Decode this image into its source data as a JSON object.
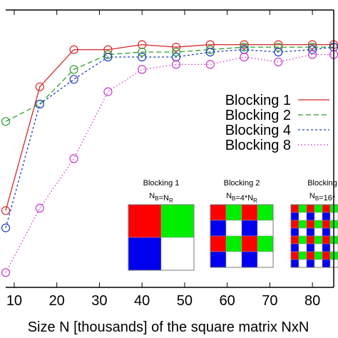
{
  "chart_data": {
    "type": "line",
    "xlabel": "Size N [thousands] of the square matrix NxN",
    "ylabel": "",
    "title": "",
    "xlim": [
      8,
      85
    ],
    "ylim": [
      0,
      1.12
    ],
    "x_ticks": [
      "10",
      "20",
      "30",
      "40",
      "50",
      "60",
      "70",
      "80"
    ],
    "x_tick_values": [
      10,
      20,
      30,
      40,
      50,
      60,
      70,
      80
    ],
    "grid": false,
    "legend_position": "right",
    "series": [
      {
        "name": "Blocking 1",
        "color": "#d62728",
        "dash": "solid",
        "x": [
          8,
          16,
          24,
          32,
          40,
          48,
          56,
          64,
          72,
          80,
          85
        ],
        "y": [
          0.31,
          0.81,
          0.96,
          0.96,
          0.98,
          0.97,
          0.98,
          0.98,
          0.98,
          0.98,
          0.98
        ]
      },
      {
        "name": "Blocking 2",
        "color": "#2ca02c",
        "dash": "long",
        "x": [
          8,
          16,
          24,
          32,
          40,
          48,
          56,
          64,
          72,
          80,
          85
        ],
        "y": [
          0.67,
          0.74,
          0.88,
          0.94,
          0.95,
          0.95,
          0.96,
          0.97,
          0.97,
          0.97,
          0.97
        ]
      },
      {
        "name": "Blocking 4",
        "color": "#1f3fbf",
        "dash": "short",
        "x": [
          8,
          16,
          24,
          32,
          40,
          48,
          56,
          64,
          72,
          80,
          85
        ],
        "y": [
          0.24,
          0.74,
          0.84,
          0.93,
          0.93,
          0.93,
          0.95,
          0.96,
          0.95,
          0.96,
          0.97
        ]
      },
      {
        "name": "Blocking 8",
        "color": "#cc33cc",
        "dash": "dot",
        "x": [
          8,
          16,
          24,
          32,
          40,
          48,
          56,
          64,
          72,
          80,
          85
        ],
        "y": [
          0.06,
          0.32,
          0.52,
          0.79,
          0.88,
          0.9,
          0.9,
          0.93,
          0.91,
          0.94,
          0.94
        ]
      }
    ],
    "insets": [
      {
        "title": "Blocking 1",
        "formula": "N_B=N_R",
        "grid": 2,
        "pattern": [
          [
            "red",
            "green"
          ],
          [
            "blue",
            "white"
          ]
        ]
      },
      {
        "title": "Blocking 2",
        "formula": "N_B=4*N_R",
        "grid": 4,
        "pattern": [
          [
            "red",
            "green"
          ],
          [
            "blue",
            "white"
          ]
        ]
      },
      {
        "title": "Blocking",
        "formula": "N_B=16*",
        "grid": 8,
        "pattern": [
          [
            "red",
            "green"
          ],
          [
            "blue",
            "white"
          ]
        ]
      }
    ],
    "colors": {
      "red": "#ff0000",
      "green": "#00ee00",
      "blue": "#0000ee",
      "white": "#ffffff"
    }
  }
}
